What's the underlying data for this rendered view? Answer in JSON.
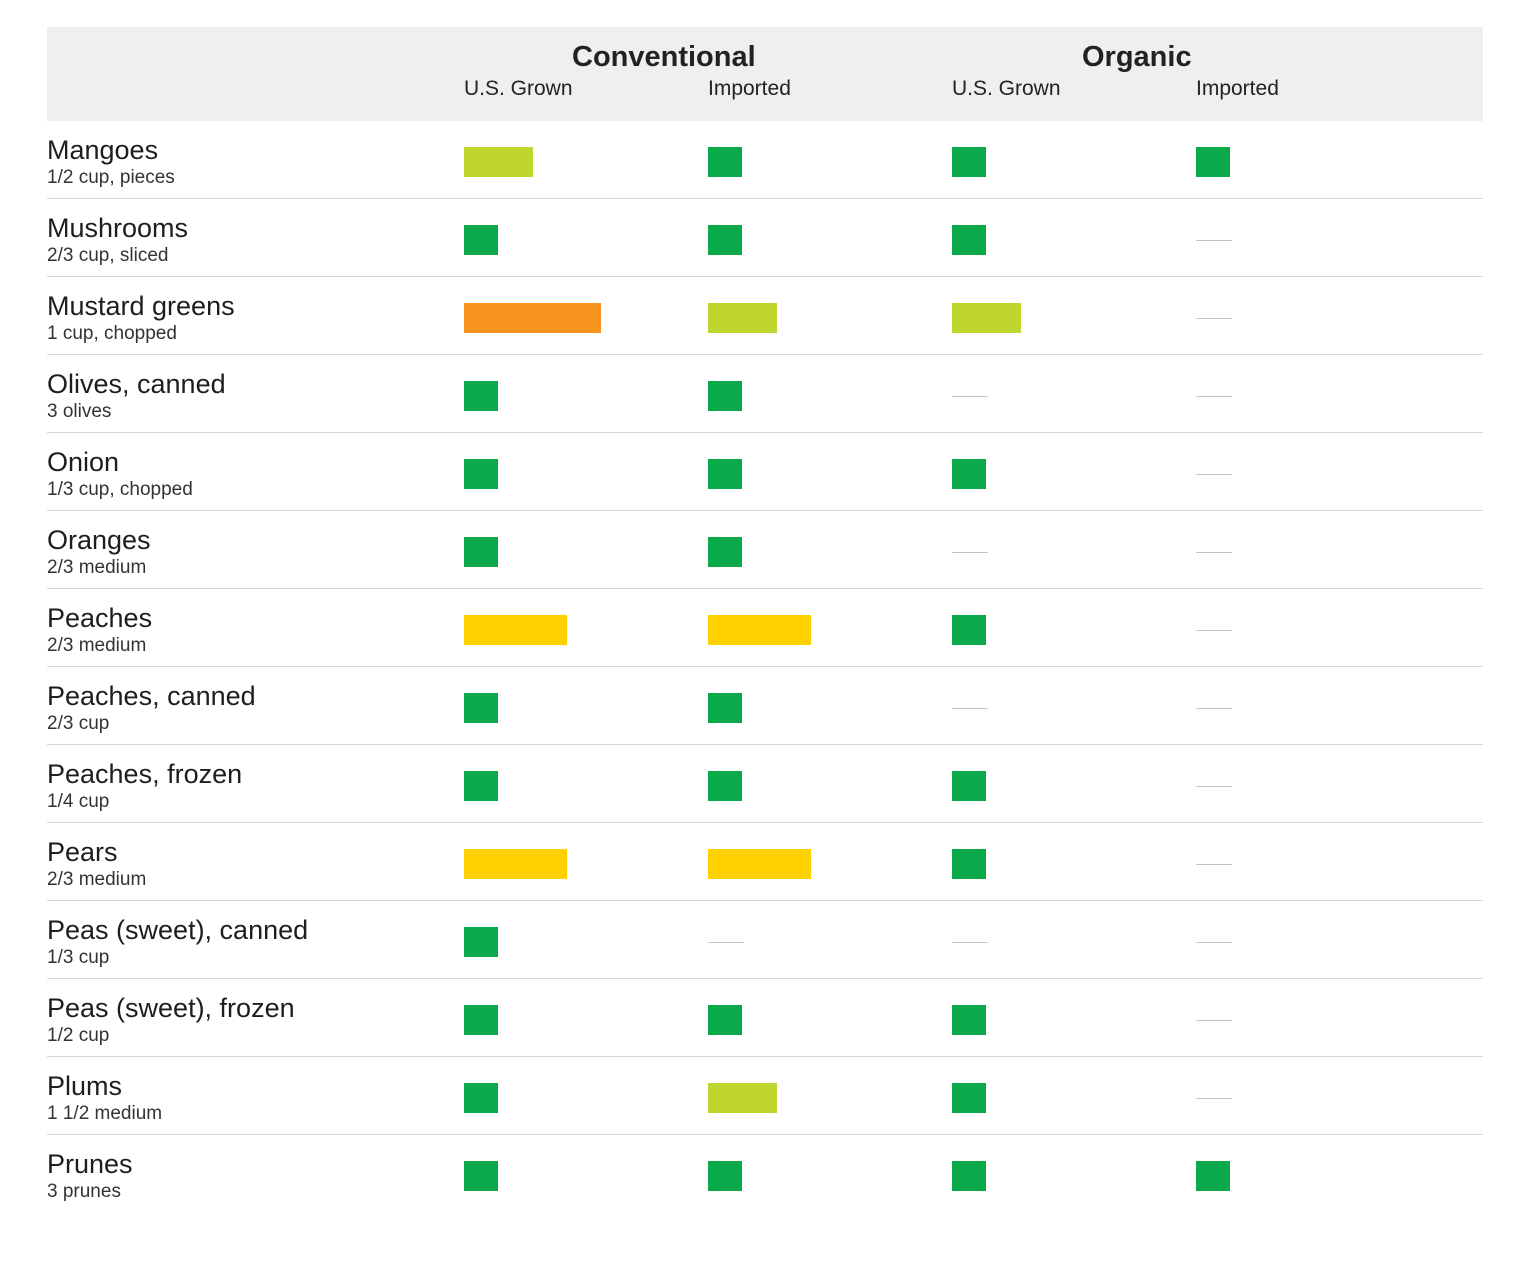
{
  "chart_data": {
    "type": "table",
    "groups": [
      "Conventional",
      "Organic"
    ],
    "columns": [
      "U.S. Grown",
      "Imported",
      "U.S. Grown",
      "Imported"
    ],
    "level_colors": {
      "1": "#0aaa4a",
      "2": "#bed62f",
      "3": "#fdd000",
      "4": "#f7941d"
    },
    "rows": [
      {
        "name": "Mangoes",
        "portion": "1/2 cup, pieces",
        "values": [
          2,
          1,
          1,
          1
        ]
      },
      {
        "name": "Mushrooms",
        "portion": "2/3 cup, sliced",
        "values": [
          1,
          1,
          1,
          null
        ]
      },
      {
        "name": "Mustard greens",
        "portion": "1 cup, chopped",
        "values": [
          4,
          2,
          2,
          null
        ]
      },
      {
        "name": "Olives, canned",
        "portion": "3 olives",
        "values": [
          1,
          1,
          null,
          null
        ]
      },
      {
        "name": "Onion",
        "portion": "1/3 cup, chopped",
        "values": [
          1,
          1,
          1,
          null
        ]
      },
      {
        "name": "Oranges",
        "portion": "2/3 medium",
        "values": [
          1,
          1,
          null,
          null
        ]
      },
      {
        "name": "Peaches",
        "portion": "2/3 medium",
        "values": [
          3,
          3,
          1,
          null
        ]
      },
      {
        "name": "Peaches, canned",
        "portion": "2/3 cup",
        "values": [
          1,
          1,
          null,
          null
        ]
      },
      {
        "name": "Peaches, frozen",
        "portion": "1/4 cup",
        "values": [
          1,
          1,
          1,
          null
        ]
      },
      {
        "name": "Pears",
        "portion": "2/3 medium",
        "values": [
          3,
          3,
          1,
          null
        ]
      },
      {
        "name": "Peas (sweet), canned",
        "portion": "1/3 cup",
        "values": [
          1,
          null,
          null,
          null
        ]
      },
      {
        "name": "Peas (sweet), frozen",
        "portion": "1/2 cup",
        "values": [
          1,
          1,
          1,
          null
        ]
      },
      {
        "name": "Plums",
        "portion": "1 1/2 medium",
        "values": [
          1,
          2,
          1,
          null
        ]
      },
      {
        "name": "Prunes",
        "portion": "3 prunes",
        "values": [
          1,
          1,
          1,
          1
        ]
      }
    ]
  }
}
